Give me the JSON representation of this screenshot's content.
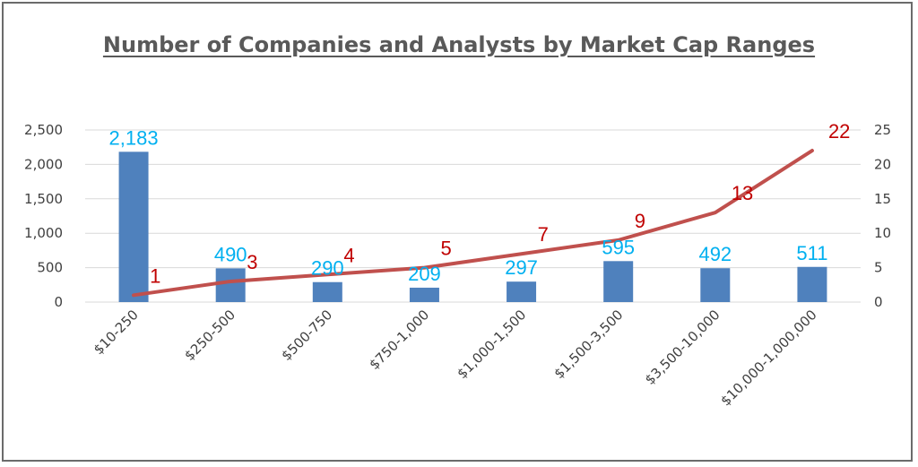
{
  "chart_data": {
    "type": "bar",
    "title": "Number of Companies and Analysts by Market Cap Ranges",
    "categories": [
      "$10-250",
      "$250-500",
      "$500-750",
      "$750-1,000",
      "$1,000-1,500",
      "$1,500-3,500",
      "$3,500-10,000",
      "$10,000-1,000,000"
    ],
    "series": [
      {
        "type": "bar",
        "axis": "left",
        "values": [
          2183,
          490,
          290,
          209,
          297,
          595,
          492,
          511
        ],
        "labels": [
          "2,183",
          "490",
          "290",
          "209",
          "297",
          "595",
          "492",
          "511"
        ]
      },
      {
        "type": "line",
        "axis": "right",
        "values": [
          1,
          3,
          4,
          5,
          7,
          9,
          13,
          22
        ],
        "labels": [
          "1",
          "3",
          "4",
          "5",
          "7",
          "9",
          "13",
          "22"
        ]
      }
    ],
    "y_left": {
      "min": 0,
      "max": 2500,
      "ticks": [
        0,
        500,
        1000,
        1500,
        2000,
        2500
      ],
      "tick_labels": [
        "0",
        "500",
        "1,000",
        "1,500",
        "2,000",
        "2,500"
      ]
    },
    "y_right": {
      "min": 0,
      "max": 25,
      "ticks": [
        0,
        5,
        10,
        15,
        20,
        25
      ],
      "tick_labels": [
        "0",
        "5",
        "10",
        "15",
        "20",
        "25"
      ]
    },
    "grid": true,
    "legend": "none",
    "colors": {
      "bar": "#4f81bd",
      "line": "#c0504d",
      "bar_label": "#00b0f0",
      "line_label": "#c00000",
      "grid": "#d9d9d9"
    }
  }
}
